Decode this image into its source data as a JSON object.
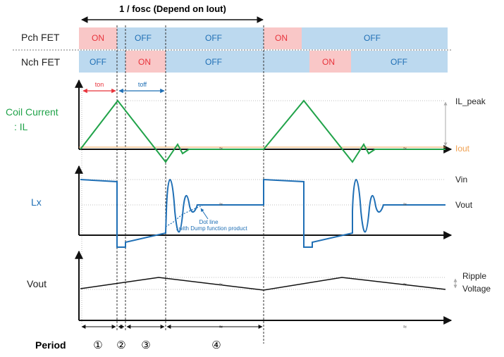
{
  "header": {
    "period_label": "1 / fosc (Depend on Iout)"
  },
  "fet_rows": [
    {
      "label": "Pch FET",
      "segments": [
        "ON",
        "OFF",
        "OFF",
        "ON",
        "OFF"
      ]
    },
    {
      "label": "Nch FET",
      "segments": [
        "OFF",
        "ON",
        "OFF",
        "ON",
        "OFF"
      ]
    }
  ],
  "timing": {
    "ton": "ton",
    "toff": "toff"
  },
  "coil": {
    "label_line1": "Coil Current",
    "label_line2": ": IL",
    "peak": "IL_peak",
    "iout": "Iout"
  },
  "lx": {
    "label": "Lx",
    "vin": "Vin",
    "vout": "Vout",
    "note_line1": "Dot line",
    "note_line2": ": with Dump function product"
  },
  "vout": {
    "label": "Vout",
    "ripple_line1": "Ripple",
    "ripple_line2": "Voltage"
  },
  "period": {
    "label": "Period",
    "markers": [
      "①",
      "②",
      "③",
      "④"
    ]
  },
  "colors": {
    "on_fill": "#f9c7c7",
    "off_fill": "#bcd9ef",
    "on_text": "#e8333b",
    "off_text": "#1f6fb5",
    "green": "#21a34a",
    "blue": "#1f6fb5",
    "orange": "#f0a050"
  }
}
